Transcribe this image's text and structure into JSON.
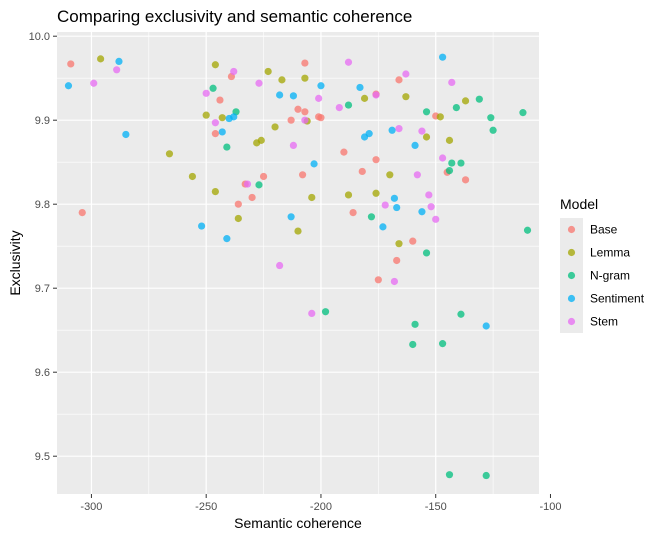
{
  "chart_data": {
    "type": "scatter",
    "title": "Comparing exclusivity and semantic coherence",
    "xlabel": "Semantic coherence",
    "ylabel": "Exclusivity",
    "xlim": [
      -315,
      -105
    ],
    "ylim": [
      9.455,
      10.005
    ],
    "xticks": [
      -300,
      -250,
      -200,
      -150,
      -100
    ],
    "xtick_labels": [
      "-300",
      "-250",
      "-200",
      "-150",
      "-100"
    ],
    "yticks": [
      9.5,
      9.6,
      9.7,
      9.8,
      9.9,
      10.0
    ],
    "ytick_labels": [
      "9.5",
      "9.6",
      "9.7",
      "9.8",
      "9.9",
      "10.0"
    ],
    "grid": true,
    "legend": {
      "title": "Model",
      "position": "right"
    },
    "series": [
      {
        "name": "Base",
        "color": "#F8766D",
        "points": [
          [
            -309,
            9.967
          ],
          [
            -304,
            9.79
          ],
          [
            -246,
            9.884
          ],
          [
            -244,
            9.924
          ],
          [
            -239,
            9.952
          ],
          [
            -236,
            9.8
          ],
          [
            -233,
            9.824
          ],
          [
            -230,
            9.808
          ],
          [
            -225,
            9.833
          ],
          [
            -213,
            9.9
          ],
          [
            -210,
            9.913
          ],
          [
            -208,
            9.835
          ],
          [
            -207,
            9.91
          ],
          [
            -207,
            9.968
          ],
          [
            -201,
            9.904
          ],
          [
            -200,
            9.903
          ],
          [
            -190,
            9.862
          ],
          [
            -186,
            9.79
          ],
          [
            -182,
            9.839
          ],
          [
            -176,
            9.853
          ],
          [
            -176,
            9.931
          ],
          [
            -175,
            9.71
          ],
          [
            -167,
            9.733
          ],
          [
            -166,
            9.948
          ],
          [
            -160,
            9.756
          ],
          [
            -150,
            9.905
          ],
          [
            -145,
            9.838
          ],
          [
            -137,
            9.829
          ]
        ]
      },
      {
        "name": "Lemma",
        "color": "#A3A500",
        "points": [
          [
            -296,
            9.973
          ],
          [
            -266,
            9.86
          ],
          [
            -256,
            9.833
          ],
          [
            -250,
            9.906
          ],
          [
            -246,
            9.966
          ],
          [
            -246,
            9.815
          ],
          [
            -243,
            9.903
          ],
          [
            -236,
            9.783
          ],
          [
            -228,
            9.873
          ],
          [
            -226,
            9.876
          ],
          [
            -223,
            9.958
          ],
          [
            -220,
            9.892
          ],
          [
            -217,
            9.948
          ],
          [
            -210,
            9.768
          ],
          [
            -207,
            9.95
          ],
          [
            -206,
            9.899
          ],
          [
            -204,
            9.808
          ],
          [
            -188,
            9.811
          ],
          [
            -181,
            9.926
          ],
          [
            -176,
            9.813
          ],
          [
            -170,
            9.835
          ],
          [
            -166,
            9.753
          ],
          [
            -163,
            9.928
          ],
          [
            -154,
            9.88
          ],
          [
            -148,
            9.904
          ],
          [
            -144,
            9.876
          ],
          [
            -137,
            9.923
          ]
        ]
      },
      {
        "name": "N-gram",
        "color": "#00BF7D",
        "points": [
          [
            -247,
            9.938
          ],
          [
            -241,
            9.868
          ],
          [
            -237,
            9.91
          ],
          [
            -227,
            9.823
          ],
          [
            -198,
            9.672
          ],
          [
            -188,
            9.918
          ],
          [
            -178,
            9.785
          ],
          [
            -160,
            9.633
          ],
          [
            -159,
            9.657
          ],
          [
            -154,
            9.91
          ],
          [
            -154,
            9.742
          ],
          [
            -147,
            9.634
          ],
          [
            -144,
            9.478
          ],
          [
            -144,
            9.84
          ],
          [
            -143,
            9.849
          ],
          [
            -141,
            9.915
          ],
          [
            -139,
            9.669
          ],
          [
            -139,
            9.849
          ],
          [
            -131,
            9.925
          ],
          [
            -128,
            9.477
          ],
          [
            -126,
            9.903
          ],
          [
            -125,
            9.888
          ],
          [
            -112,
            9.909
          ],
          [
            -110,
            9.769
          ]
        ]
      },
      {
        "name": "Sentiment",
        "color": "#00B0F6",
        "points": [
          [
            -310,
            9.941
          ],
          [
            -288,
            9.97
          ],
          [
            -285,
            9.883
          ],
          [
            -252,
            9.774
          ],
          [
            -243,
            9.886
          ],
          [
            -241,
            9.759
          ],
          [
            -240,
            9.902
          ],
          [
            -238,
            9.904
          ],
          [
            -218,
            9.93
          ],
          [
            -213,
            9.785
          ],
          [
            -212,
            9.929
          ],
          [
            -203,
            9.848
          ],
          [
            -200,
            9.941
          ],
          [
            -183,
            9.939
          ],
          [
            -181,
            9.88
          ],
          [
            -179,
            9.884
          ],
          [
            -173,
            9.773
          ],
          [
            -169,
            9.888
          ],
          [
            -168,
            9.807
          ],
          [
            -167,
            9.796
          ],
          [
            -159,
            9.87
          ],
          [
            -156,
            9.791
          ],
          [
            -147,
            9.975
          ],
          [
            -128,
            9.655
          ]
        ]
      },
      {
        "name": "Stem",
        "color": "#E76BF3",
        "points": [
          [
            -299,
            9.944
          ],
          [
            -289,
            9.96
          ],
          [
            -250,
            9.932
          ],
          [
            -246,
            9.897
          ],
          [
            -238,
            9.958
          ],
          [
            -232,
            9.824
          ],
          [
            -227,
            9.944
          ],
          [
            -218,
            9.727
          ],
          [
            -212,
            9.87
          ],
          [
            -207,
            9.9
          ],
          [
            -204,
            9.67
          ],
          [
            -201,
            9.926
          ],
          [
            -192,
            9.915
          ],
          [
            -188,
            9.969
          ],
          [
            -176,
            9.93
          ],
          [
            -172,
            9.799
          ],
          [
            -168,
            9.708
          ],
          [
            -166,
            9.89
          ],
          [
            -163,
            9.955
          ],
          [
            -158,
            9.835
          ],
          [
            -156,
            9.887
          ],
          [
            -153,
            9.811
          ],
          [
            -152,
            9.797
          ],
          [
            -150,
            9.782
          ],
          [
            -147,
            9.855
          ],
          [
            -143,
            9.945
          ]
        ]
      }
    ]
  }
}
